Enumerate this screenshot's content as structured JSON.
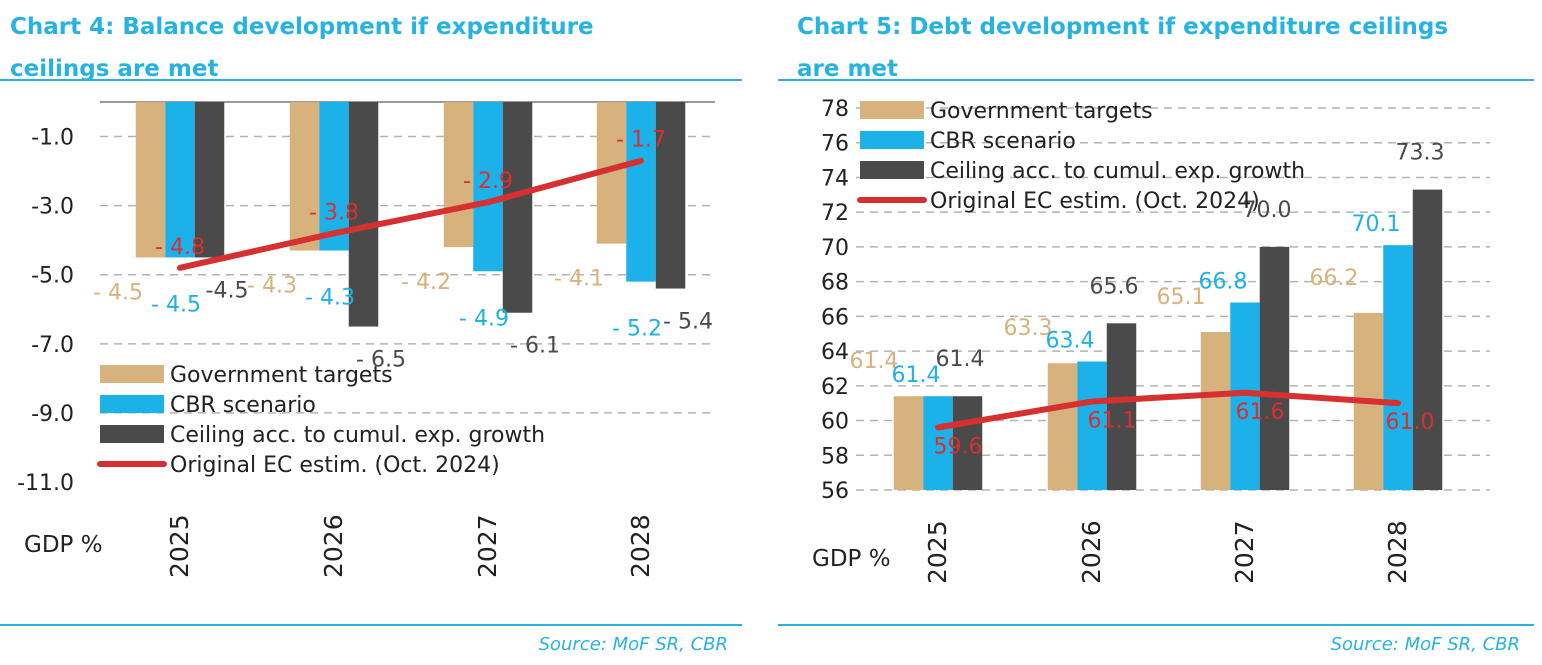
{
  "colors": {
    "accent": "#27b3e2",
    "government": "#d8b27c",
    "cbr": "#1cb1e8",
    "ceiling": "#4a4a4a",
    "ec": "#d63030",
    "gridline": "#b3b3b3",
    "text": "#222222"
  },
  "chart4": {
    "title": "Chart 4: Balance development if expenditure ceilings are met",
    "title_lines": [
      "Chart 4: Balance development if expenditure",
      "ceilings are met"
    ],
    "source": "Source: MoF SR, CBR",
    "unit_label": "GDP %"
  },
  "chart5": {
    "title": "Chart 5: Debt development if expenditure ceilings are met",
    "title_lines": [
      "Chart 5: Debt development if expenditure ceilings",
      "are met"
    ],
    "source": "Source: MoF SR, CBR",
    "unit_label": "GDP %"
  },
  "chart_data": [
    {
      "type": "bar",
      "title": "Chart 4: Balance development if expenditure ceilings are met",
      "ylabel": "GDP %",
      "categories": [
        "2025",
        "2026",
        "2027",
        "2028"
      ],
      "ylim": [
        -11.0,
        0.0
      ],
      "yticks": [
        -1.0,
        -3.0,
        -5.0,
        -7.0,
        -9.0,
        -11.0
      ],
      "ytick_labels": [
        "-1.0",
        "-3.0",
        "-5.0",
        "-7.0",
        "-9.0",
        "-11.0"
      ],
      "grid": true,
      "legend": "bottom-left",
      "series": [
        {
          "name": "Government targets",
          "kind": "bar",
          "values": [
            -4.5,
            -4.3,
            -4.2,
            -4.1
          ],
          "labels": [
            "- 4.5",
            "- 4.3",
            "- 4.2",
            "- 4.1"
          ]
        },
        {
          "name": "CBR scenario",
          "kind": "bar",
          "values": [
            -4.5,
            -4.3,
            -4.9,
            -5.2
          ],
          "labels": [
            "- 4.5",
            "- 4.3",
            "- 4.9",
            "- 5.2"
          ]
        },
        {
          "name": "Ceiling acc. to cumul. exp. growth",
          "kind": "bar",
          "values": [
            -4.5,
            -6.5,
            -6.1,
            -5.4
          ],
          "labels": [
            "-4.5",
            "- 6.5",
            "- 6.1",
            "- 5.4"
          ]
        },
        {
          "name": "Original EC estim. (Oct. 2024)",
          "kind": "line",
          "values": [
            -4.8,
            -3.8,
            -2.9,
            -1.7
          ],
          "labels": [
            "- 4.8",
            "- 3.8",
            "- 2.9",
            "- 1.7"
          ]
        }
      ]
    },
    {
      "type": "bar",
      "title": "Chart 5: Debt development if expenditure ceilings are met",
      "ylabel": "GDP %",
      "categories": [
        "2025",
        "2026",
        "2027",
        "2028"
      ],
      "ylim": [
        56,
        78
      ],
      "yticks": [
        56,
        58,
        60,
        62,
        64,
        66,
        68,
        70,
        72,
        74,
        76,
        78
      ],
      "ytick_labels": [
        "56",
        "58",
        "60",
        "62",
        "64",
        "66",
        "68",
        "70",
        "72",
        "74",
        "76",
        "78"
      ],
      "grid": true,
      "legend": "top-left",
      "series": [
        {
          "name": "Government targets",
          "kind": "bar",
          "values": [
            61.4,
            63.3,
            65.1,
            66.2
          ],
          "labels": [
            "61.4",
            "63.3",
            "65.1",
            "66.2"
          ]
        },
        {
          "name": "CBR scenario",
          "kind": "bar",
          "values": [
            61.4,
            63.4,
            66.8,
            70.1
          ],
          "labels": [
            "61.4",
            "63.4",
            "66.8",
            "70.1"
          ]
        },
        {
          "name": "Ceiling acc. to cumul. exp. growth",
          "kind": "bar",
          "values": [
            61.4,
            65.6,
            70.0,
            73.3
          ],
          "labels": [
            "61.4",
            "65.6",
            "70.0",
            "73.3"
          ]
        },
        {
          "name": "Original EC estim. (Oct. 2024)",
          "kind": "line",
          "values": [
            59.6,
            61.1,
            61.6,
            61.0
          ],
          "labels": [
            "59.6",
            "61.1",
            "61.6",
            "61.0"
          ]
        }
      ]
    }
  ]
}
